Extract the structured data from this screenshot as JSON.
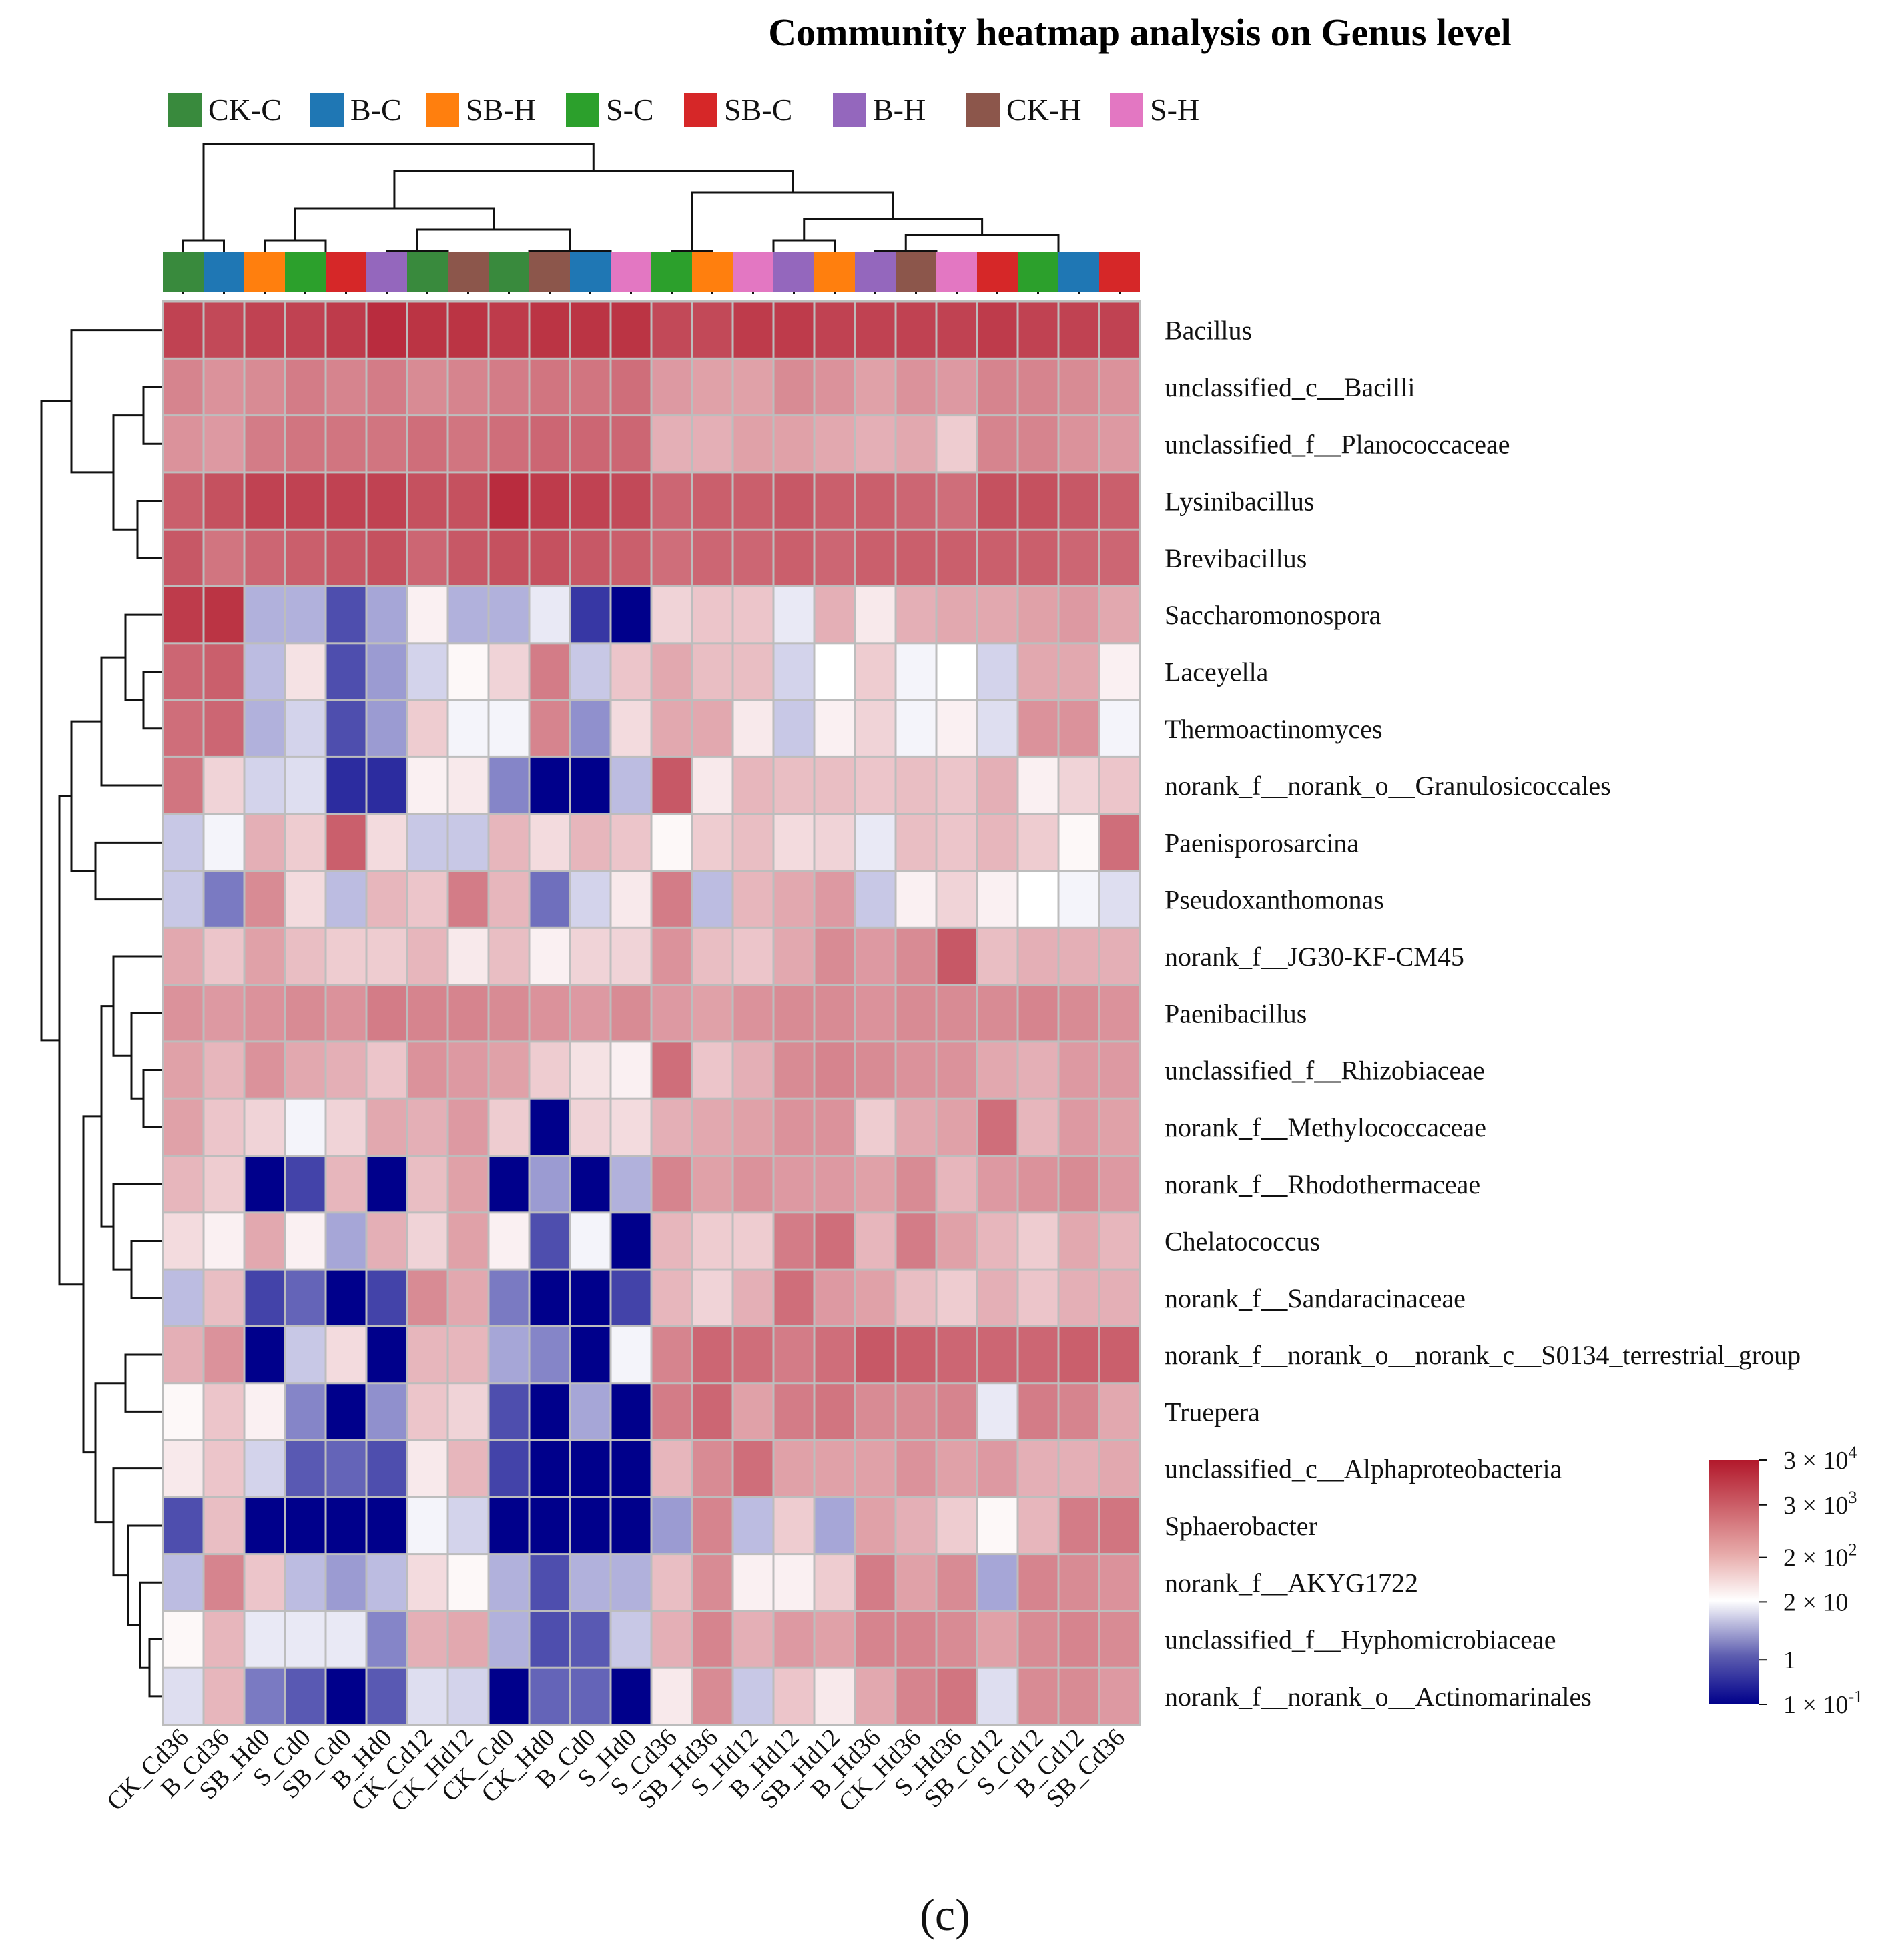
{
  "chart_data": {
    "type": "heatmap",
    "title": "Community heatmap analysis on Genus level",
    "panel_label": "(c)",
    "legend": {
      "items": [
        {
          "name": "CK-C",
          "color": "#398a3d"
        },
        {
          "name": "B-C",
          "color": "#1f77b4"
        },
        {
          "name": "SB-H",
          "color": "#ff7f0e"
        },
        {
          "name": "S-C",
          "color": "#2ca02c"
        },
        {
          "name": "SB-C",
          "color": "#d62728"
        },
        {
          "name": "B-H",
          "color": "#9467bd"
        },
        {
          "name": "CK-H",
          "color": "#8c564b"
        },
        {
          "name": "S-H",
          "color": "#e377c2"
        }
      ],
      "placement": "top"
    },
    "samples": [
      "CK_Cd36",
      "B_Cd36",
      "SB_Hd0",
      "S_Cd0",
      "SB_Cd0",
      "B_Hd0",
      "CK_Cd12",
      "CK_Hd12",
      "CK_Cd0",
      "CK_Hd0",
      "B_Cd0",
      "S_Hd0",
      "S_Cd36",
      "SB_Hd36",
      "S_Hd12",
      "B_Hd12",
      "SB_Hd12",
      "B_Hd36",
      "CK_Hd36",
      "S_Hd36",
      "SB_Cd12",
      "S_Cd12",
      "B_Cd12",
      "SB_Cd36"
    ],
    "sample_groups": [
      "CK-C",
      "B-C",
      "SB-H",
      "S-C",
      "SB-C",
      "B-H",
      "CK-C",
      "CK-H",
      "CK-C",
      "CK-H",
      "B-C",
      "S-H",
      "S-C",
      "SB-H",
      "S-H",
      "B-H",
      "SB-H",
      "B-H",
      "CK-H",
      "S-H",
      "SB-C",
      "S-C",
      "B-C",
      "SB-C"
    ],
    "taxa": [
      "Bacillus",
      "unclassified_c__Bacilli",
      "unclassified_f__Planococcaceae",
      "Lysinibacillus",
      "Brevibacillus",
      "Saccharomonospora",
      "Laceyella",
      "Thermoactinomyces",
      "norank_f__norank_o__Granulosicoccales",
      "Paenisporosarcina",
      "Pseudoxanthomonas",
      "norank_f__JG30-KF-CM45",
      "Paenibacillus",
      "unclassified_f__Rhizobiaceae",
      "norank_f__Methylococcaceae",
      "norank_f__Rhodothermaceae",
      "Chelatococcus",
      "norank_f__Sandaracinaceae",
      "norank_f__norank_o__norank_c__S0134_terrestrial_group",
      "Truepera",
      "unclassified_c__Alphaproteobacteria",
      "Sphaerobacter",
      "norank_f__AKYG1722",
      "unclassified_f__Hyphomicrobiaceae",
      "norank_f__norank_o__Actinomarinales"
    ],
    "values": [
      [
        3.9,
        3.8,
        3.9,
        3.9,
        4.0,
        4.2,
        4.1,
        4.1,
        4.0,
        4.1,
        4.1,
        4.1,
        3.8,
        3.8,
        4.0,
        4.0,
        3.9,
        3.9,
        3.9,
        3.9,
        4.0,
        3.9,
        3.9,
        3.9
      ],
      [
        3.0,
        2.8,
        2.9,
        3.1,
        3.0,
        3.1,
        2.9,
        3.0,
        3.1,
        3.2,
        3.2,
        3.3,
        2.7,
        2.6,
        2.6,
        2.9,
        2.8,
        2.6,
        2.8,
        2.7,
        3.0,
        3.0,
        2.9,
        2.8
      ],
      [
        2.8,
        2.7,
        3.1,
        3.2,
        3.2,
        3.2,
        3.3,
        3.2,
        3.3,
        3.4,
        3.4,
        3.4,
        2.4,
        2.4,
        2.6,
        2.6,
        2.5,
        2.4,
        2.5,
        2.0,
        3.0,
        3.0,
        2.8,
        2.7
      ],
      [
        3.5,
        3.7,
        3.9,
        3.9,
        3.9,
        3.9,
        3.7,
        3.7,
        4.2,
        4.0,
        3.9,
        3.8,
        3.4,
        3.5,
        3.5,
        3.6,
        3.5,
        3.5,
        3.4,
        3.3,
        3.7,
        3.7,
        3.6,
        3.5
      ],
      [
        3.6,
        3.2,
        3.4,
        3.5,
        3.6,
        3.7,
        3.4,
        3.6,
        3.7,
        3.7,
        3.6,
        3.5,
        3.3,
        3.4,
        3.4,
        3.5,
        3.4,
        3.5,
        3.5,
        3.5,
        3.5,
        3.5,
        3.4,
        3.4
      ],
      [
        4.0,
        4.1,
        0.6,
        0.6,
        -0.3,
        0.5,
        1.5,
        0.6,
        0.6,
        1.1,
        -0.5,
        -1.0,
        1.9,
        2.1,
        2.1,
        1.1,
        2.4,
        1.6,
        2.4,
        2.5,
        2.5,
        2.6,
        2.7,
        2.5
      ],
      [
        3.4,
        3.5,
        0.7,
        1.7,
        -0.3,
        0.4,
        0.9,
        1.4,
        1.9,
        3.1,
        0.8,
        2.1,
        2.5,
        2.2,
        2.2,
        0.9,
        1.3,
        2.0,
        1.2,
        1.3,
        0.9,
        2.5,
        2.5,
        1.5
      ],
      [
        3.3,
        3.4,
        0.6,
        0.9,
        -0.3,
        0.4,
        2.0,
        1.2,
        1.2,
        3.0,
        0.3,
        1.8,
        2.5,
        2.5,
        1.6,
        0.8,
        1.5,
        1.9,
        1.2,
        1.5,
        1.0,
        2.8,
        2.8,
        1.2
      ],
      [
        3.2,
        1.9,
        0.9,
        1.0,
        -0.6,
        -0.6,
        1.5,
        1.6,
        0.2,
        -1.0,
        -1.0,
        0.7,
        3.6,
        1.6,
        2.3,
        2.2,
        2.2,
        2.1,
        2.2,
        2.1,
        2.4,
        1.5,
        1.9,
        2.1
      ],
      [
        0.8,
        1.2,
        2.4,
        2.0,
        3.5,
        1.8,
        0.8,
        0.8,
        2.3,
        1.8,
        2.3,
        2.1,
        1.4,
        2.0,
        2.2,
        1.8,
        1.9,
        1.1,
        2.2,
        2.1,
        2.3,
        2.0,
        1.4,
        3.3
      ],
      [
        0.8,
        0.1,
        2.9,
        1.8,
        0.7,
        2.3,
        2.1,
        3.1,
        2.3,
        0.0,
        0.9,
        1.6,
        3.1,
        0.7,
        2.3,
        2.5,
        2.7,
        0.8,
        1.5,
        1.9,
        1.5,
        1.3,
        1.2,
        1.0
      ],
      [
        2.5,
        2.1,
        2.6,
        2.2,
        2.0,
        2.0,
        2.3,
        1.6,
        2.2,
        1.5,
        1.9,
        1.9,
        2.8,
        2.2,
        2.1,
        2.5,
        2.9,
        2.7,
        2.9,
        3.6,
        2.2,
        2.4,
        2.4,
        2.4
      ],
      [
        2.8,
        2.7,
        2.8,
        2.9,
        2.8,
        3.1,
        3.0,
        3.0,
        2.9,
        2.8,
        2.7,
        2.9,
        2.7,
        2.6,
        2.8,
        2.9,
        2.9,
        2.8,
        2.9,
        2.9,
        2.9,
        3.0,
        2.9,
        2.8
      ],
      [
        2.6,
        2.3,
        2.8,
        2.5,
        2.4,
        2.1,
        2.8,
        2.7,
        2.6,
        2.0,
        1.7,
        1.5,
        3.3,
        2.1,
        2.4,
        2.9,
        3.0,
        2.9,
        2.8,
        2.8,
        2.5,
        2.4,
        2.7,
        2.7
      ],
      [
        2.6,
        2.1,
        1.9,
        1.2,
        1.9,
        2.5,
        2.4,
        2.7,
        2.0,
        -1.0,
        1.9,
        1.8,
        2.4,
        2.5,
        2.6,
        2.8,
        2.8,
        2.0,
        2.5,
        2.6,
        3.3,
        2.3,
        2.7,
        2.6
      ],
      [
        2.3,
        2.0,
        -1.0,
        -0.4,
        2.3,
        -1.0,
        2.2,
        2.6,
        -1.0,
        0.4,
        -1.0,
        0.6,
        3.0,
        2.6,
        2.8,
        2.7,
        2.7,
        2.6,
        2.9,
        2.3,
        2.7,
        2.8,
        2.9,
        2.7
      ],
      [
        1.8,
        1.5,
        2.5,
        1.5,
        0.5,
        2.4,
        1.9,
        2.6,
        1.5,
        -0.3,
        1.2,
        -1.0,
        2.3,
        2.0,
        2.0,
        3.1,
        3.3,
        2.3,
        3.1,
        2.6,
        2.3,
        2.0,
        2.5,
        2.3
      ],
      [
        0.7,
        2.2,
        -0.4,
        -0.1,
        -1.0,
        -0.4,
        2.9,
        2.5,
        0.1,
        -1.0,
        -1.0,
        -0.4,
        2.3,
        1.9,
        2.4,
        3.3,
        2.7,
        2.6,
        2.2,
        2.0,
        2.4,
        2.1,
        2.4,
        2.4
      ],
      [
        2.4,
        2.8,
        -1.0,
        0.8,
        1.8,
        -1.0,
        2.3,
        2.3,
        0.5,
        0.2,
        -1.0,
        1.2,
        3.0,
        3.4,
        3.3,
        3.1,
        3.3,
        3.6,
        3.5,
        3.4,
        3.4,
        3.4,
        3.5,
        3.5
      ],
      [
        1.4,
        2.1,
        1.5,
        0.2,
        -1.0,
        0.3,
        2.1,
        1.9,
        -0.3,
        -1.0,
        0.5,
        -1.0,
        3.1,
        3.4,
        2.6,
        3.1,
        3.2,
        2.9,
        2.9,
        3.0,
        1.1,
        3.1,
        3.0,
        2.5
      ],
      [
        1.6,
        2.1,
        0.9,
        -0.2,
        -0.1,
        -0.3,
        1.6,
        2.3,
        -0.4,
        -1.0,
        -1.0,
        -1.0,
        2.3,
        2.9,
        3.3,
        2.6,
        2.6,
        2.6,
        2.8,
        2.6,
        2.7,
        2.4,
        2.4,
        2.5
      ],
      [
        -0.3,
        2.2,
        -1.0,
        -1.0,
        -1.0,
        -1.0,
        1.2,
        0.9,
        -1.0,
        -1.0,
        -1.0,
        -1.0,
        0.4,
        3.0,
        0.7,
        2.0,
        0.5,
        2.6,
        2.4,
        2.0,
        1.4,
        2.3,
        3.1,
        3.2
      ],
      [
        0.7,
        3.0,
        2.1,
        0.7,
        0.4,
        0.7,
        1.8,
        1.4,
        0.6,
        -0.3,
        0.6,
        0.6,
        2.2,
        2.9,
        1.5,
        1.5,
        2.0,
        3.1,
        2.6,
        2.9,
        0.5,
        3.0,
        2.9,
        2.8
      ],
      [
        1.4,
        2.3,
        1.1,
        1.1,
        1.1,
        0.2,
        2.4,
        2.5,
        0.6,
        -0.3,
        -0.2,
        0.8,
        2.4,
        3.0,
        2.4,
        2.7,
        2.6,
        3.0,
        3.0,
        2.9,
        2.6,
        2.9,
        3.0,
        2.9
      ],
      [
        1.0,
        2.3,
        0.1,
        -0.2,
        -1.0,
        -0.2,
        1.0,
        0.9,
        -1.0,
        -0.1,
        -0.1,
        -1.0,
        1.6,
        2.9,
        0.8,
        2.1,
        1.6,
        2.5,
        3.0,
        3.2,
        1.0,
        2.9,
        2.9,
        2.7
      ]
    ],
    "color_scale": {
      "low": "#00008b",
      "mid": "#ffffff",
      "high": "#b2182b",
      "domain_log10": [
        -1,
        4.48
      ],
      "ticks": [
        {
          "log10": 4.48,
          "mant": "3 × 10",
          "exp": "4"
        },
        {
          "log10": 3.48,
          "mant": "3 × 10",
          "exp": "3"
        },
        {
          "log10": 2.3,
          "mant": "2 × 10",
          "exp": "2"
        },
        {
          "log10": 1.3,
          "mant": "2 × 10",
          "exp": ""
        },
        {
          "log10": 0.0,
          "mant": "1",
          "exp": ""
        },
        {
          "log10": -1.0,
          "mant": "1 × 10",
          "exp": "-1"
        }
      ]
    }
  }
}
